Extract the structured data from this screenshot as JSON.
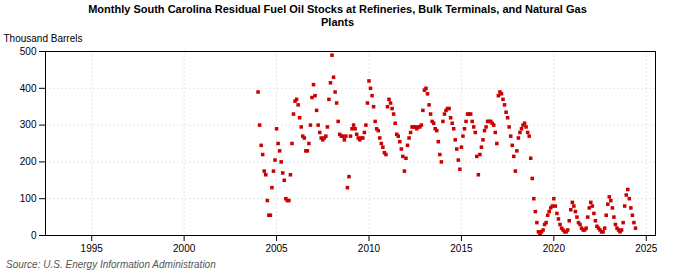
{
  "chart_data": {
    "type": "scatter",
    "title": "Monthly South Carolina Residual Fuel Oil Stocks at Refineries, Bulk Terminals, and Natural Gas\nPlants",
    "y_label": "Thousand Barrels",
    "annotations": [
      "Source: U.S. Energy Information Administration"
    ],
    "color": "#CC0000",
    "marker": "square",
    "grid": true,
    "xlim": [
      1992.5,
      2025.5
    ],
    "ylim": [
      0,
      500
    ],
    "xticks": [
      1995,
      2000,
      2005,
      2010,
      2015,
      2020,
      2025
    ],
    "yticks": [
      0,
      100,
      200,
      300,
      400,
      500
    ],
    "x": [
      2004.0,
      2004.083,
      2004.167,
      2004.25,
      2004.333,
      2004.417,
      2004.5,
      2004.583,
      2004.667,
      2004.75,
      2004.833,
      2004.917,
      2005.0,
      2005.083,
      2005.167,
      2005.25,
      2005.333,
      2005.417,
      2005.5,
      2005.583,
      2005.667,
      2005.75,
      2005.833,
      2005.917,
      2006.0,
      2006.083,
      2006.167,
      2006.25,
      2006.333,
      2006.417,
      2006.5,
      2006.583,
      2006.667,
      2006.75,
      2006.833,
      2006.917,
      2007.0,
      2007.083,
      2007.167,
      2007.25,
      2007.333,
      2007.417,
      2007.5,
      2007.583,
      2007.667,
      2007.75,
      2007.833,
      2007.917,
      2008.0,
      2008.083,
      2008.167,
      2008.25,
      2008.333,
      2008.417,
      2008.5,
      2008.583,
      2008.667,
      2008.75,
      2008.833,
      2008.917,
      2009.0,
      2009.083,
      2009.167,
      2009.25,
      2009.333,
      2009.417,
      2009.5,
      2009.583,
      2009.667,
      2009.75,
      2009.833,
      2009.917,
      2010.0,
      2010.083,
      2010.167,
      2010.25,
      2010.333,
      2010.417,
      2010.5,
      2010.583,
      2010.667,
      2010.75,
      2010.833,
      2010.917,
      2011.0,
      2011.083,
      2011.167,
      2011.25,
      2011.333,
      2011.417,
      2011.5,
      2011.583,
      2011.667,
      2011.75,
      2011.833,
      2011.917,
      2012.0,
      2012.083,
      2012.167,
      2012.25,
      2012.333,
      2012.417,
      2012.5,
      2012.583,
      2012.667,
      2012.75,
      2012.833,
      2012.917,
      2013.0,
      2013.083,
      2013.167,
      2013.25,
      2013.333,
      2013.417,
      2013.5,
      2013.583,
      2013.667,
      2013.75,
      2013.833,
      2013.917,
      2014.0,
      2014.083,
      2014.167,
      2014.25,
      2014.333,
      2014.417,
      2014.5,
      2014.583,
      2014.667,
      2014.75,
      2014.833,
      2014.917,
      2015.0,
      2015.083,
      2015.167,
      2015.25,
      2015.333,
      2015.417,
      2015.5,
      2015.583,
      2015.667,
      2015.75,
      2015.833,
      2015.917,
      2016.0,
      2016.083,
      2016.167,
      2016.25,
      2016.333,
      2016.417,
      2016.5,
      2016.583,
      2016.667,
      2016.75,
      2016.833,
      2016.917,
      2017.0,
      2017.083,
      2017.167,
      2017.25,
      2017.333,
      2017.417,
      2017.5,
      2017.583,
      2017.667,
      2017.75,
      2017.833,
      2017.917,
      2018.0,
      2018.083,
      2018.167,
      2018.25,
      2018.333,
      2018.417,
      2018.5,
      2018.583,
      2018.667,
      2018.75,
      2018.833,
      2018.917,
      2019.0,
      2019.083,
      2019.167,
      2019.25,
      2019.333,
      2019.417,
      2019.5,
      2019.583,
      2019.667,
      2019.75,
      2019.833,
      2019.917,
      2020.0,
      2020.083,
      2020.167,
      2020.25,
      2020.333,
      2020.417,
      2020.5,
      2020.583,
      2020.667,
      2020.75,
      2020.833,
      2020.917,
      2021.0,
      2021.083,
      2021.167,
      2021.25,
      2021.333,
      2021.417,
      2021.5,
      2021.583,
      2021.667,
      2021.75,
      2021.833,
      2021.917,
      2022.0,
      2022.083,
      2022.167,
      2022.25,
      2022.333,
      2022.417,
      2022.5,
      2022.583,
      2022.667,
      2022.75,
      2022.833,
      2022.917,
      2023.0,
      2023.083,
      2023.167,
      2023.25,
      2023.333,
      2023.417,
      2023.5,
      2023.583,
      2023.667,
      2023.75,
      2023.833,
      2023.917,
      2024.0,
      2024.083,
      2024.167,
      2024.25,
      2024.333,
      2024.417
    ],
    "values": [
      390,
      300,
      245,
      220,
      175,
      165,
      95,
      55,
      55,
      130,
      175,
      205,
      290,
      250,
      230,
      200,
      170,
      150,
      100,
      95,
      95,
      165,
      250,
      330,
      365,
      370,
      355,
      320,
      295,
      270,
      265,
      230,
      230,
      250,
      300,
      375,
      410,
      380,
      340,
      300,
      280,
      265,
      260,
      265,
      270,
      295,
      370,
      415,
      490,
      430,
      390,
      360,
      310,
      275,
      270,
      270,
      260,
      270,
      130,
      160,
      270,
      290,
      300,
      290,
      275,
      265,
      260,
      265,
      265,
      280,
      300,
      360,
      420,
      400,
      380,
      350,
      310,
      290,
      285,
      265,
      250,
      240,
      225,
      220,
      350,
      370,
      360,
      345,
      330,
      305,
      275,
      270,
      255,
      235,
      215,
      175,
      210,
      245,
      265,
      280,
      295,
      295,
      295,
      290,
      295,
      295,
      300,
      340,
      395,
      400,
      385,
      355,
      330,
      310,
      305,
      290,
      285,
      255,
      220,
      200,
      310,
      330,
      340,
      345,
      345,
      320,
      305,
      290,
      260,
      235,
      205,
      180,
      240,
      270,
      290,
      310,
      330,
      330,
      330,
      310,
      295,
      280,
      215,
      165,
      220,
      240,
      260,
      285,
      295,
      310,
      310,
      310,
      305,
      300,
      280,
      250,
      380,
      390,
      385,
      370,
      355,
      335,
      320,
      295,
      270,
      245,
      215,
      175,
      230,
      265,
      280,
      290,
      300,
      305,
      295,
      280,
      270,
      210,
      155,
      100,
      65,
      35,
      10,
      5,
      10,
      15,
      30,
      35,
      55,
      65,
      75,
      80,
      100,
      80,
      60,
      45,
      30,
      20,
      15,
      10,
      10,
      15,
      40,
      70,
      90,
      80,
      65,
      50,
      35,
      30,
      20,
      15,
      15,
      20,
      50,
      75,
      90,
      80,
      60,
      40,
      25,
      20,
      15,
      10,
      10,
      20,
      55,
      85,
      105,
      95,
      75,
      50,
      30,
      20,
      15,
      10,
      15,
      35,
      80,
      110,
      125,
      100,
      75,
      55,
      35,
      20
    ]
  }
}
